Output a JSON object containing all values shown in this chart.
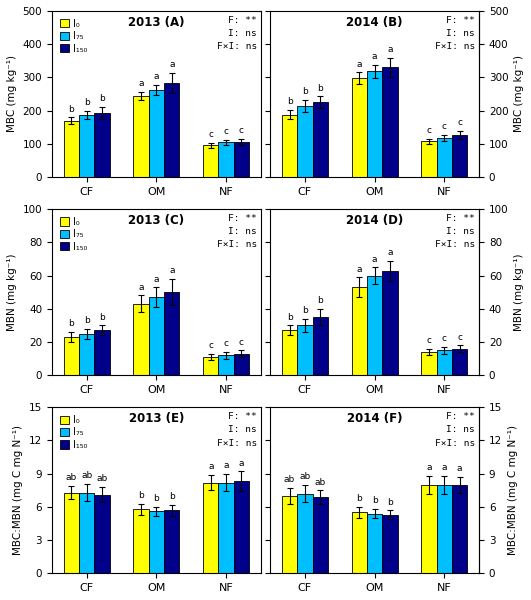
{
  "colors": [
    "#FFFF00",
    "#00BFFF",
    "#00008B"
  ],
  "legend_labels": [
    "I₀",
    "I₇₅",
    "I₁₅₀"
  ],
  "MBC_2013": {
    "title": "2013 (A)",
    "left_ylabel": "MBC (mg kg⁻¹)",
    "ylim": [
      0,
      500
    ],
    "yticks": [
      0,
      100,
      200,
      300,
      400,
      500
    ],
    "categories": [
      "CF",
      "OM",
      "NF"
    ],
    "I0": [
      170,
      245,
      95
    ],
    "I75": [
      187,
      263,
      104
    ],
    "I150": [
      193,
      283,
      106
    ],
    "I0_err": [
      10,
      12,
      8
    ],
    "I75_err": [
      12,
      15,
      9
    ],
    "I150_err": [
      18,
      30,
      10
    ],
    "letters_I0": [
      "b",
      "a",
      "c"
    ],
    "letters_I75": [
      "b",
      "a",
      "c"
    ],
    "letters_I150": [
      "b",
      "a",
      "c"
    ],
    "stats": "F: **\nI: ns\nF×I: ns"
  },
  "MBC_2014": {
    "title": "2014 (B)",
    "right_ylabel": "MBC (mg kg⁻¹)",
    "ylim": [
      0,
      500
    ],
    "yticks": [
      0,
      100,
      200,
      300,
      400,
      500
    ],
    "categories": [
      "CF",
      "OM",
      "NF"
    ],
    "I0": [
      188,
      297,
      108
    ],
    "I75": [
      215,
      318,
      118
    ],
    "I150": [
      225,
      330,
      128
    ],
    "I0_err": [
      14,
      18,
      8
    ],
    "I75_err": [
      18,
      20,
      10
    ],
    "I150_err": [
      18,
      28,
      12
    ],
    "letters_I0": [
      "b",
      "a",
      "c"
    ],
    "letters_I75": [
      "b",
      "a",
      "c"
    ],
    "letters_I150": [
      "b",
      "a",
      "c"
    ],
    "stats": "F: **\nI: ns\nF×I: ns"
  },
  "MBN_2013": {
    "title": "2013 (C)",
    "left_ylabel": "MBN (mg kg⁻¹)",
    "ylim": [
      0,
      100
    ],
    "yticks": [
      0,
      20,
      40,
      60,
      80,
      100
    ],
    "categories": [
      "CF",
      "OM",
      "NF"
    ],
    "I0": [
      23,
      43,
      11
    ],
    "I75": [
      25,
      47,
      12
    ],
    "I150": [
      27,
      50,
      13
    ],
    "I0_err": [
      3,
      5,
      2
    ],
    "I75_err": [
      3,
      6,
      2
    ],
    "I150_err": [
      3,
      8,
      2
    ],
    "letters_I0": [
      "b",
      "a",
      "c"
    ],
    "letters_I75": [
      "b",
      "a",
      "c"
    ],
    "letters_I150": [
      "b",
      "a",
      "c"
    ],
    "stats": "F: **\nI: ns\nF×I: ns"
  },
  "MBN_2014": {
    "title": "2014 (D)",
    "right_ylabel": "MBN (mg kg⁻¹)",
    "ylim": [
      0,
      100
    ],
    "yticks": [
      0,
      20,
      40,
      60,
      80,
      100
    ],
    "categories": [
      "CF",
      "OM",
      "NF"
    ],
    "I0": [
      27,
      53,
      14
    ],
    "I75": [
      30,
      60,
      15
    ],
    "I150": [
      35,
      63,
      16
    ],
    "I0_err": [
      3,
      6,
      2
    ],
    "I75_err": [
      4,
      5,
      2
    ],
    "I150_err": [
      5,
      6,
      2
    ],
    "letters_I0": [
      "b",
      "a",
      "c"
    ],
    "letters_I75": [
      "b",
      "a",
      "c"
    ],
    "letters_I150": [
      "b",
      "a",
      "c"
    ],
    "stats": "F: **\nI: ns\nF×I: ns"
  },
  "ratio_2013": {
    "title": "2013 (E)",
    "left_ylabel": "MBC:MBN (mg C mg N⁻¹)",
    "ylim": [
      0,
      15
    ],
    "yticks": [
      0,
      3,
      6,
      9,
      12,
      15
    ],
    "categories": [
      "CF",
      "OM",
      "NF"
    ],
    "I0": [
      7.3,
      5.8,
      8.2
    ],
    "I75": [
      7.3,
      5.6,
      8.2
    ],
    "I150": [
      7.1,
      5.7,
      8.3
    ],
    "I0_err": [
      0.6,
      0.5,
      0.7
    ],
    "I75_err": [
      0.8,
      0.4,
      0.8
    ],
    "I150_err": [
      0.7,
      0.5,
      0.9
    ],
    "letters_I0": [
      "ab",
      "b",
      "a"
    ],
    "letters_I75": [
      "ab",
      "b",
      "a"
    ],
    "letters_I150": [
      "ab",
      "b",
      "a"
    ],
    "stats": "F: **\nI: ns\nF×I: ns"
  },
  "ratio_2014": {
    "title": "2014 (F)",
    "right_ylabel": "MBC:MBN (mg C mg N⁻¹)",
    "ylim": [
      0,
      15
    ],
    "yticks": [
      0,
      3,
      6,
      9,
      12,
      15
    ],
    "categories": [
      "CF",
      "OM",
      "NF"
    ],
    "I0": [
      7.0,
      5.5,
      8.0
    ],
    "I75": [
      7.2,
      5.4,
      8.0
    ],
    "I150": [
      6.9,
      5.3,
      8.0
    ],
    "I0_err": [
      0.7,
      0.5,
      0.8
    ],
    "I75_err": [
      0.8,
      0.4,
      0.8
    ],
    "I150_err": [
      0.6,
      0.4,
      0.7
    ],
    "letters_I0": [
      "ab",
      "b",
      "a"
    ],
    "letters_I75": [
      "ab",
      "b",
      "a"
    ],
    "letters_I150": [
      "ab",
      "b",
      "a"
    ],
    "stats": "F: **\nI: ns\nF×I: ns"
  }
}
